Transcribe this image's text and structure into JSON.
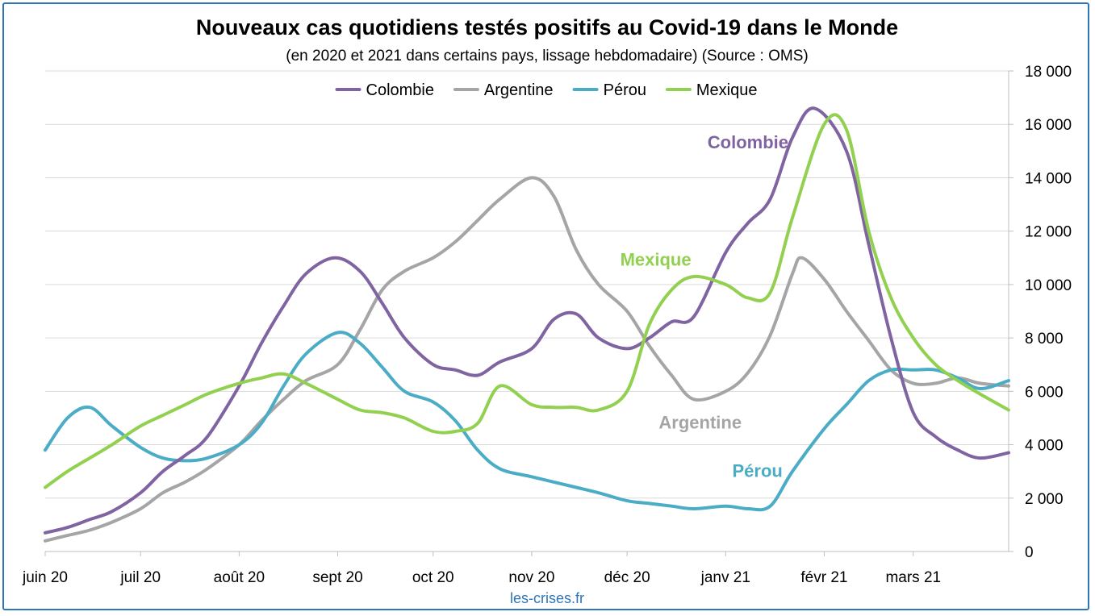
{
  "chart_data": {
    "type": "line",
    "title": "Nouveaux cas quotidiens testés positifs au Covid-19 dans le Monde",
    "subtitle": "(en 2020 et 2021 dans certains pays, lissage hebdomadaire) (Source : OMS)",
    "xlabel": "",
    "ylabel": "",
    "y_axis_position": "right",
    "ylim": [
      0,
      18000
    ],
    "y_ticks": [
      0,
      2000,
      4000,
      6000,
      8000,
      10000,
      12000,
      14000,
      16000,
      18000
    ],
    "y_tick_labels": [
      "0",
      "2 000",
      "4 000",
      "6 000",
      "8 000",
      "10 000",
      "12 000",
      "14 000",
      "16 000",
      "18 000"
    ],
    "x_domain": [
      "2020-06-01",
      "2021-03-31"
    ],
    "x_ticks": [
      {
        "date": "2020-06-01",
        "label": "juin 20"
      },
      {
        "date": "2020-07-01",
        "label": "juil 20"
      },
      {
        "date": "2020-08-01",
        "label": "août 20"
      },
      {
        "date": "2020-09-01",
        "label": "sept 20"
      },
      {
        "date": "2020-10-01",
        "label": "oct 20"
      },
      {
        "date": "2020-11-01",
        "label": "nov 20"
      },
      {
        "date": "2020-12-01",
        "label": "déc 20"
      },
      {
        "date": "2021-01-01",
        "label": "janv 21"
      },
      {
        "date": "2021-02-01",
        "label": "févr 21"
      },
      {
        "date": "2021-03-01",
        "label": "mars 21"
      }
    ],
    "grid": true,
    "legend_position": "top-center",
    "series": [
      {
        "name": "Colombie",
        "color": "#8064a2",
        "points": [
          [
            "2020-06-01",
            700
          ],
          [
            "2020-06-08",
            900
          ],
          [
            "2020-06-15",
            1200
          ],
          [
            "2020-06-22",
            1500
          ],
          [
            "2020-07-01",
            2200
          ],
          [
            "2020-07-08",
            3000
          ],
          [
            "2020-07-15",
            3600
          ],
          [
            "2020-07-22",
            4300
          ],
          [
            "2020-08-01",
            6200
          ],
          [
            "2020-08-08",
            7800
          ],
          [
            "2020-08-15",
            9200
          ],
          [
            "2020-08-22",
            10400
          ],
          [
            "2020-08-31",
            11000
          ],
          [
            "2020-09-08",
            10500
          ],
          [
            "2020-09-15",
            9300
          ],
          [
            "2020-09-22",
            8000
          ],
          [
            "2020-10-01",
            7000
          ],
          [
            "2020-10-08",
            6800
          ],
          [
            "2020-10-15",
            6600
          ],
          [
            "2020-10-22",
            7100
          ],
          [
            "2020-11-01",
            7600
          ],
          [
            "2020-11-08",
            8700
          ],
          [
            "2020-11-15",
            8900
          ],
          [
            "2020-11-22",
            8000
          ],
          [
            "2020-12-01",
            7600
          ],
          [
            "2020-12-08",
            8000
          ],
          [
            "2020-12-15",
            8600
          ],
          [
            "2020-12-22",
            8800
          ],
          [
            "2021-01-01",
            11200
          ],
          [
            "2021-01-08",
            12300
          ],
          [
            "2021-01-15",
            13200
          ],
          [
            "2021-01-22",
            15500
          ],
          [
            "2021-01-29",
            16600
          ],
          [
            "2021-02-08",
            15000
          ],
          [
            "2021-02-15",
            11500
          ],
          [
            "2021-02-22",
            8000
          ],
          [
            "2021-03-01",
            5200
          ],
          [
            "2021-03-08",
            4300
          ],
          [
            "2021-03-15",
            3800
          ],
          [
            "2021-03-22",
            3500
          ],
          [
            "2021-03-31",
            3700
          ]
        ]
      },
      {
        "name": "Argentine",
        "color": "#a5a5a5",
        "points": [
          [
            "2020-06-01",
            400
          ],
          [
            "2020-06-08",
            600
          ],
          [
            "2020-06-15",
            800
          ],
          [
            "2020-06-22",
            1100
          ],
          [
            "2020-07-01",
            1600
          ],
          [
            "2020-07-08",
            2200
          ],
          [
            "2020-07-15",
            2600
          ],
          [
            "2020-07-22",
            3100
          ],
          [
            "2020-08-01",
            4000
          ],
          [
            "2020-08-08",
            4900
          ],
          [
            "2020-08-15",
            5700
          ],
          [
            "2020-08-22",
            6400
          ],
          [
            "2020-09-01",
            7000
          ],
          [
            "2020-09-08",
            8300
          ],
          [
            "2020-09-15",
            9800
          ],
          [
            "2020-09-22",
            10500
          ],
          [
            "2020-10-01",
            11000
          ],
          [
            "2020-10-08",
            11600
          ],
          [
            "2020-10-15",
            12400
          ],
          [
            "2020-10-22",
            13200
          ],
          [
            "2020-11-01",
            14000
          ],
          [
            "2020-11-08",
            13300
          ],
          [
            "2020-11-15",
            11300
          ],
          [
            "2020-11-22",
            10000
          ],
          [
            "2020-12-01",
            9000
          ],
          [
            "2020-12-08",
            7700
          ],
          [
            "2020-12-15",
            6600
          ],
          [
            "2020-12-22",
            5700
          ],
          [
            "2021-01-01",
            6000
          ],
          [
            "2021-01-08",
            6700
          ],
          [
            "2021-01-15",
            8100
          ],
          [
            "2021-01-22",
            10400
          ],
          [
            "2021-01-25",
            11000
          ],
          [
            "2021-02-01",
            10200
          ],
          [
            "2021-02-08",
            9000
          ],
          [
            "2021-02-15",
            7900
          ],
          [
            "2021-02-22",
            6800
          ],
          [
            "2021-03-01",
            6300
          ],
          [
            "2021-03-08",
            6300
          ],
          [
            "2021-03-15",
            6500
          ],
          [
            "2021-03-22",
            6300
          ],
          [
            "2021-03-31",
            6200
          ]
        ]
      },
      {
        "name": "Pérou",
        "color": "#4bacc6",
        "points": [
          [
            "2020-06-01",
            3800
          ],
          [
            "2020-06-08",
            5000
          ],
          [
            "2020-06-15",
            5400
          ],
          [
            "2020-06-22",
            4700
          ],
          [
            "2020-07-01",
            3900
          ],
          [
            "2020-07-08",
            3500
          ],
          [
            "2020-07-15",
            3400
          ],
          [
            "2020-07-22",
            3500
          ],
          [
            "2020-08-01",
            4000
          ],
          [
            "2020-08-08",
            4800
          ],
          [
            "2020-08-15",
            6200
          ],
          [
            "2020-08-22",
            7400
          ],
          [
            "2020-09-01",
            8200
          ],
          [
            "2020-09-08",
            7800
          ],
          [
            "2020-09-15",
            6900
          ],
          [
            "2020-09-22",
            6000
          ],
          [
            "2020-10-01",
            5600
          ],
          [
            "2020-10-08",
            4900
          ],
          [
            "2020-10-15",
            3800
          ],
          [
            "2020-10-22",
            3100
          ],
          [
            "2020-11-01",
            2800
          ],
          [
            "2020-11-08",
            2600
          ],
          [
            "2020-11-15",
            2400
          ],
          [
            "2020-11-22",
            2200
          ],
          [
            "2020-12-01",
            1900
          ],
          [
            "2020-12-08",
            1800
          ],
          [
            "2020-12-15",
            1700
          ],
          [
            "2020-12-22",
            1600
          ],
          [
            "2021-01-01",
            1700
          ],
          [
            "2021-01-08",
            1600
          ],
          [
            "2021-01-15",
            1700
          ],
          [
            "2021-01-22",
            3000
          ],
          [
            "2021-02-01",
            4600
          ],
          [
            "2021-02-08",
            5500
          ],
          [
            "2021-02-15",
            6400
          ],
          [
            "2021-02-22",
            6800
          ],
          [
            "2021-03-01",
            6800
          ],
          [
            "2021-03-08",
            6800
          ],
          [
            "2021-03-15",
            6500
          ],
          [
            "2021-03-22",
            6100
          ],
          [
            "2021-03-31",
            6400
          ]
        ]
      },
      {
        "name": "Mexique",
        "color": "#92d050",
        "points": [
          [
            "2020-06-01",
            2400
          ],
          [
            "2020-06-08",
            3000
          ],
          [
            "2020-06-15",
            3500
          ],
          [
            "2020-06-22",
            4000
          ],
          [
            "2020-07-01",
            4700
          ],
          [
            "2020-07-08",
            5100
          ],
          [
            "2020-07-15",
            5500
          ],
          [
            "2020-07-22",
            5900
          ],
          [
            "2020-08-01",
            6300
          ],
          [
            "2020-08-08",
            6500
          ],
          [
            "2020-08-15",
            6650
          ],
          [
            "2020-08-22",
            6300
          ],
          [
            "2020-09-01",
            5700
          ],
          [
            "2020-09-08",
            5300
          ],
          [
            "2020-09-15",
            5200
          ],
          [
            "2020-09-22",
            5000
          ],
          [
            "2020-10-01",
            4500
          ],
          [
            "2020-10-08",
            4500
          ],
          [
            "2020-10-15",
            4800
          ],
          [
            "2020-10-22",
            6200
          ],
          [
            "2020-11-01",
            5500
          ],
          [
            "2020-11-08",
            5400
          ],
          [
            "2020-11-15",
            5400
          ],
          [
            "2020-11-22",
            5300
          ],
          [
            "2020-12-01",
            6000
          ],
          [
            "2020-12-08",
            8500
          ],
          [
            "2020-12-15",
            9800
          ],
          [
            "2020-12-22",
            10300
          ],
          [
            "2021-01-01",
            10000
          ],
          [
            "2021-01-08",
            9500
          ],
          [
            "2021-01-15",
            9700
          ],
          [
            "2021-01-22",
            12500
          ],
          [
            "2021-02-01",
            16000
          ],
          [
            "2021-02-08",
            15800
          ],
          [
            "2021-02-15",
            12000
          ],
          [
            "2021-02-22",
            9500
          ],
          [
            "2021-03-01",
            8000
          ],
          [
            "2021-03-08",
            7000
          ],
          [
            "2021-03-15",
            6400
          ],
          [
            "2021-03-22",
            5900
          ],
          [
            "2021-03-31",
            5300
          ]
        ]
      }
    ],
    "annotations": [
      {
        "text": "Colombie",
        "series": "Colombie",
        "date": "2021-01-08",
        "value": 15100
      },
      {
        "text": "Mexique",
        "series": "Mexique",
        "date": "2020-12-10",
        "value": 10700
      },
      {
        "text": "Argentine",
        "series": "Argentine",
        "date": "2020-12-24",
        "value": 4600
      },
      {
        "text": "Pérou",
        "series": "Pérou",
        "date": "2021-01-11",
        "value": 2800
      }
    ],
    "source_text": "les-crises.fr"
  }
}
